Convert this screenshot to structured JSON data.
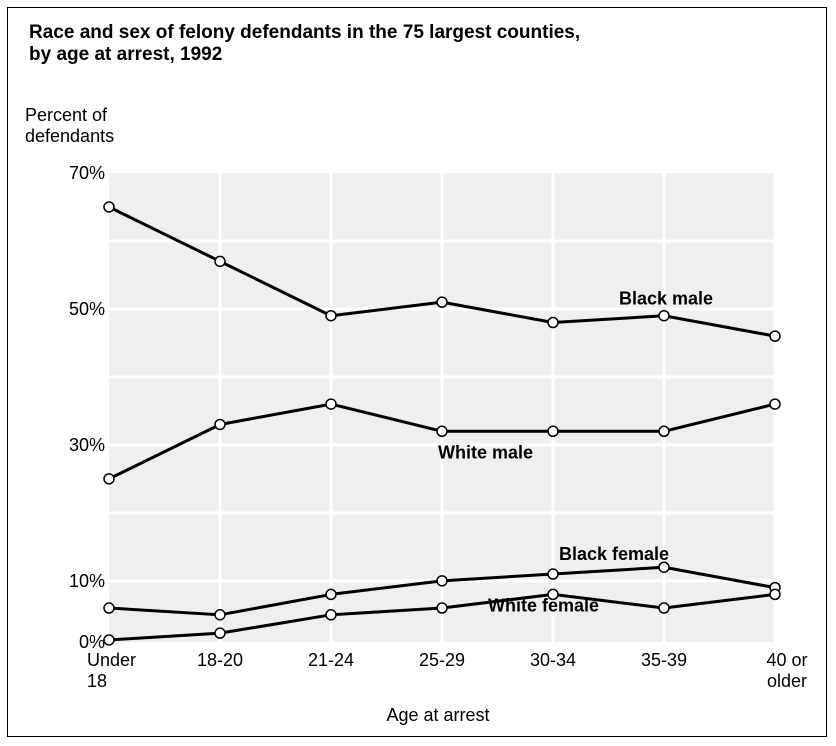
{
  "chart_data": {
    "type": "line",
    "title_lines": [
      "Race and sex of felony defendants in the 75 largest counties,",
      "by age at arrest, 1992"
    ],
    "ylabel_lines": [
      "Percent of",
      "defendants"
    ],
    "xlabel": "Age at arrest",
    "categories": [
      [
        "Under",
        "18"
      ],
      [
        "18-20"
      ],
      [
        "21-24"
      ],
      [
        "25-29"
      ],
      [
        "30-34"
      ],
      [
        "35-39"
      ],
      [
        "40 or",
        "older"
      ]
    ],
    "yticks": [
      {
        "value": 70,
        "label": "70%"
      },
      {
        "value": 50,
        "label": "50%"
      },
      {
        "value": 30,
        "label": "30%"
      },
      {
        "value": 10,
        "label": "10%"
      },
      {
        "value": 1,
        "label": "0%"
      }
    ],
    "ylim": [
      1,
      70
    ],
    "grid": true,
    "series": [
      {
        "name": "Black male",
        "values": [
          65,
          57,
          49,
          51,
          48,
          49,
          46
        ],
        "label_anchor": 5
      },
      {
        "name": "White male",
        "values": [
          25,
          33,
          36,
          32,
          32,
          32,
          36
        ],
        "label_anchor": 4
      },
      {
        "name": "Black female",
        "values": [
          6,
          5,
          8,
          10,
          11,
          12,
          9
        ],
        "label_anchor": 5
      },
      {
        "name": "White female",
        "values": [
          1.3,
          2.3,
          5,
          6,
          8,
          6,
          8
        ],
        "label_anchor": 4
      }
    ]
  }
}
